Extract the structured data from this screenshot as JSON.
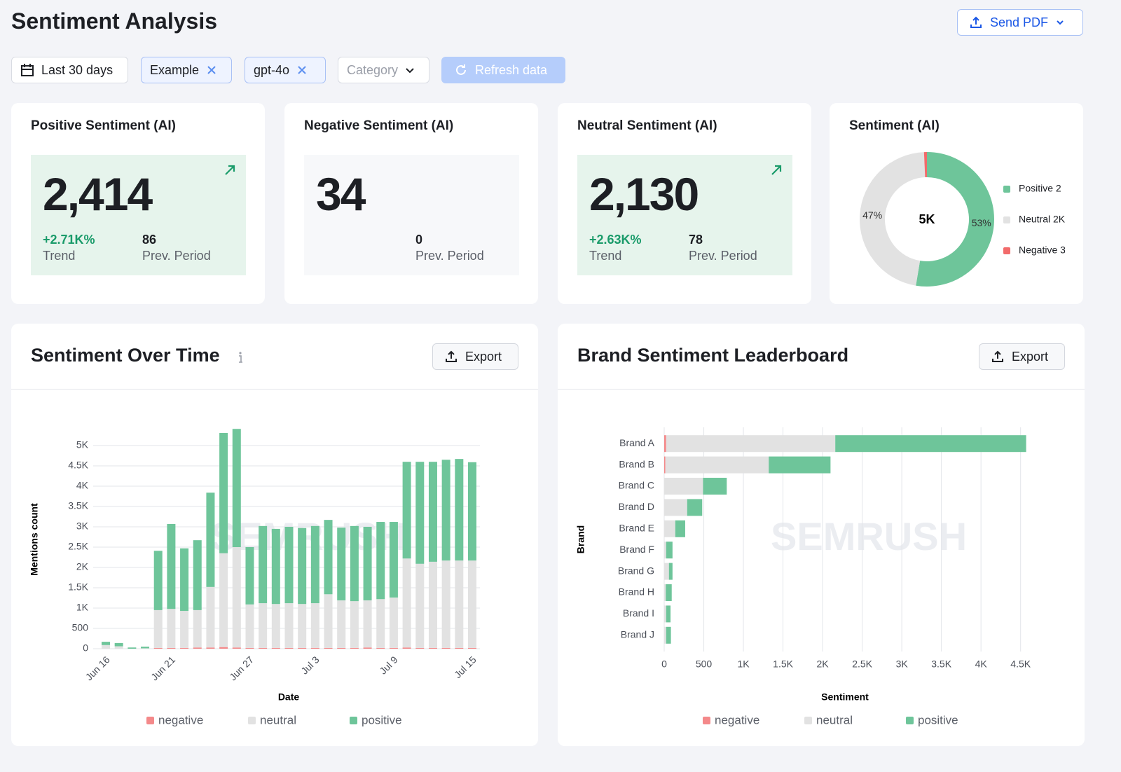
{
  "header": {
    "title": "Sentiment Analysis",
    "send_pdf": "Send PDF"
  },
  "filters": {
    "date_range": "Last 30 days",
    "tags": [
      "Example",
      "gpt-4o"
    ],
    "category": "Category",
    "refresh": "Refresh data"
  },
  "kpis": [
    {
      "title": "Positive Sentiment (AI)",
      "value": "2,414",
      "trend": "+2.71K%",
      "trend_label": "Trend",
      "prev": "86",
      "prev_label": "Prev. Period"
    },
    {
      "title": "Negative Sentiment (AI)",
      "value": "34",
      "prev": "0",
      "prev_label": "Prev. Period"
    },
    {
      "title": "Neutral Sentiment (AI)",
      "value": "2,130",
      "trend": "+2.63K%",
      "trend_label": "Trend",
      "prev": "78",
      "prev_label": "Prev. Period"
    }
  ],
  "panels": [
    {
      "title": "Sentiment Over Time",
      "export": "Export"
    },
    {
      "title": "Brand Sentiment Leaderboard",
      "export": "Export"
    }
  ],
  "watermark": "SEMRUSH",
  "chart_data": [
    {
      "type": "donut",
      "title": "Sentiment (AI)",
      "center_label": "5K",
      "categories": [
        "Positive 2",
        "Neutral 2K",
        "Negative 3"
      ],
      "values": [
        53,
        47,
        0.7
      ],
      "value_labels": [
        "53%",
        "47%",
        null
      ],
      "colors": [
        "#6ec59a",
        "#e2e2e2",
        "#f26b6b"
      ],
      "legend": "right"
    },
    {
      "type": "stacked_bar",
      "x_label": "Date",
      "y_label": "Mentions count",
      "categories": [
        "Jun 16",
        null,
        null,
        null,
        null,
        "Jun 21",
        null,
        null,
        null,
        null,
        null,
        "Jun 27",
        null,
        null,
        null,
        null,
        "Jul 3",
        null,
        null,
        null,
        null,
        null,
        "Jul 9",
        null,
        null,
        null,
        null,
        null,
        "Jul 15"
      ],
      "series": [
        {
          "name": "negative",
          "color": "#f4898a",
          "values": [
            0,
            0,
            0,
            0,
            20,
            20,
            20,
            30,
            30,
            40,
            30,
            20,
            20,
            20,
            20,
            20,
            20,
            20,
            20,
            20,
            30,
            20,
            20,
            30,
            20,
            20,
            20,
            20,
            20
          ]
        },
        {
          "name": "neutral",
          "color": "#e2e2e2",
          "values": [
            90,
            60,
            0,
            10,
            930,
            960,
            910,
            920,
            1490,
            2310,
            2470,
            1070,
            1100,
            1080,
            1100,
            1080,
            1100,
            1320,
            1170,
            1150,
            1160,
            1200,
            1240,
            2190,
            2070,
            2120,
            2150,
            2150,
            2150
          ]
        },
        {
          "name": "positive",
          "color": "#6ec59a",
          "values": [
            80,
            80,
            30,
            40,
            1460,
            2090,
            1540,
            1720,
            2320,
            2960,
            2910,
            1410,
            1900,
            1850,
            1880,
            1870,
            1900,
            1830,
            1790,
            1850,
            1810,
            1900,
            1860,
            2380,
            2510,
            2460,
            2480,
            2500,
            2420
          ]
        }
      ],
      "ylim": [
        0,
        5500
      ],
      "yticks": [
        0,
        500,
        {
          "value": 1000,
          "label": "1K"
        },
        {
          "value": 1500,
          "label": "1.5K"
        },
        {
          "value": 2000,
          "label": "2K"
        },
        {
          "value": 2500,
          "label": "2.5K"
        },
        {
          "value": 3000,
          "label": "3K"
        },
        {
          "value": 3500,
          "label": "3.5K"
        },
        {
          "value": 4000,
          "label": "4K"
        },
        {
          "value": 4500,
          "label": "4.5K"
        },
        {
          "value": 5000,
          "label": "5K"
        }
      ],
      "grid": true,
      "legend": "bottom"
    },
    {
      "type": "stacked_barh",
      "x_label": "Sentiment",
      "y_label": "Brand",
      "categories": [
        "Brand A",
        "Brand B",
        "Brand C",
        "Brand D",
        "Brand E",
        "Brand F",
        "Brand G",
        "Brand H",
        "Brand I",
        "Brand J"
      ],
      "series": [
        {
          "name": "negative",
          "color": "#f4898a",
          "values": [
            25,
            15,
            0,
            0,
            0,
            0,
            0,
            0,
            0,
            0
          ]
        },
        {
          "name": "neutral",
          "color": "#e2e2e2",
          "values": [
            2135,
            1305,
            490,
            290,
            140,
            25,
            60,
            20,
            25,
            25
          ]
        },
        {
          "name": "positive",
          "color": "#6ec59a",
          "values": [
            2410,
            780,
            300,
            190,
            125,
            80,
            45,
            75,
            55,
            60
          ]
        }
      ],
      "xlim": [
        0,
        4600
      ],
      "xticks": [
        0,
        500,
        {
          "value": 1000,
          "label": "1K"
        },
        {
          "value": 1500,
          "label": "1.5K"
        },
        {
          "value": 2000,
          "label": "2K"
        },
        {
          "value": 2500,
          "label": "2.5K"
        },
        {
          "value": 3000,
          "label": "3K"
        },
        {
          "value": 3500,
          "label": "3.5K"
        },
        {
          "value": 4000,
          "label": "4K"
        },
        {
          "value": 4500,
          "label": "4.5K"
        }
      ],
      "grid": true,
      "legend": "bottom"
    }
  ]
}
